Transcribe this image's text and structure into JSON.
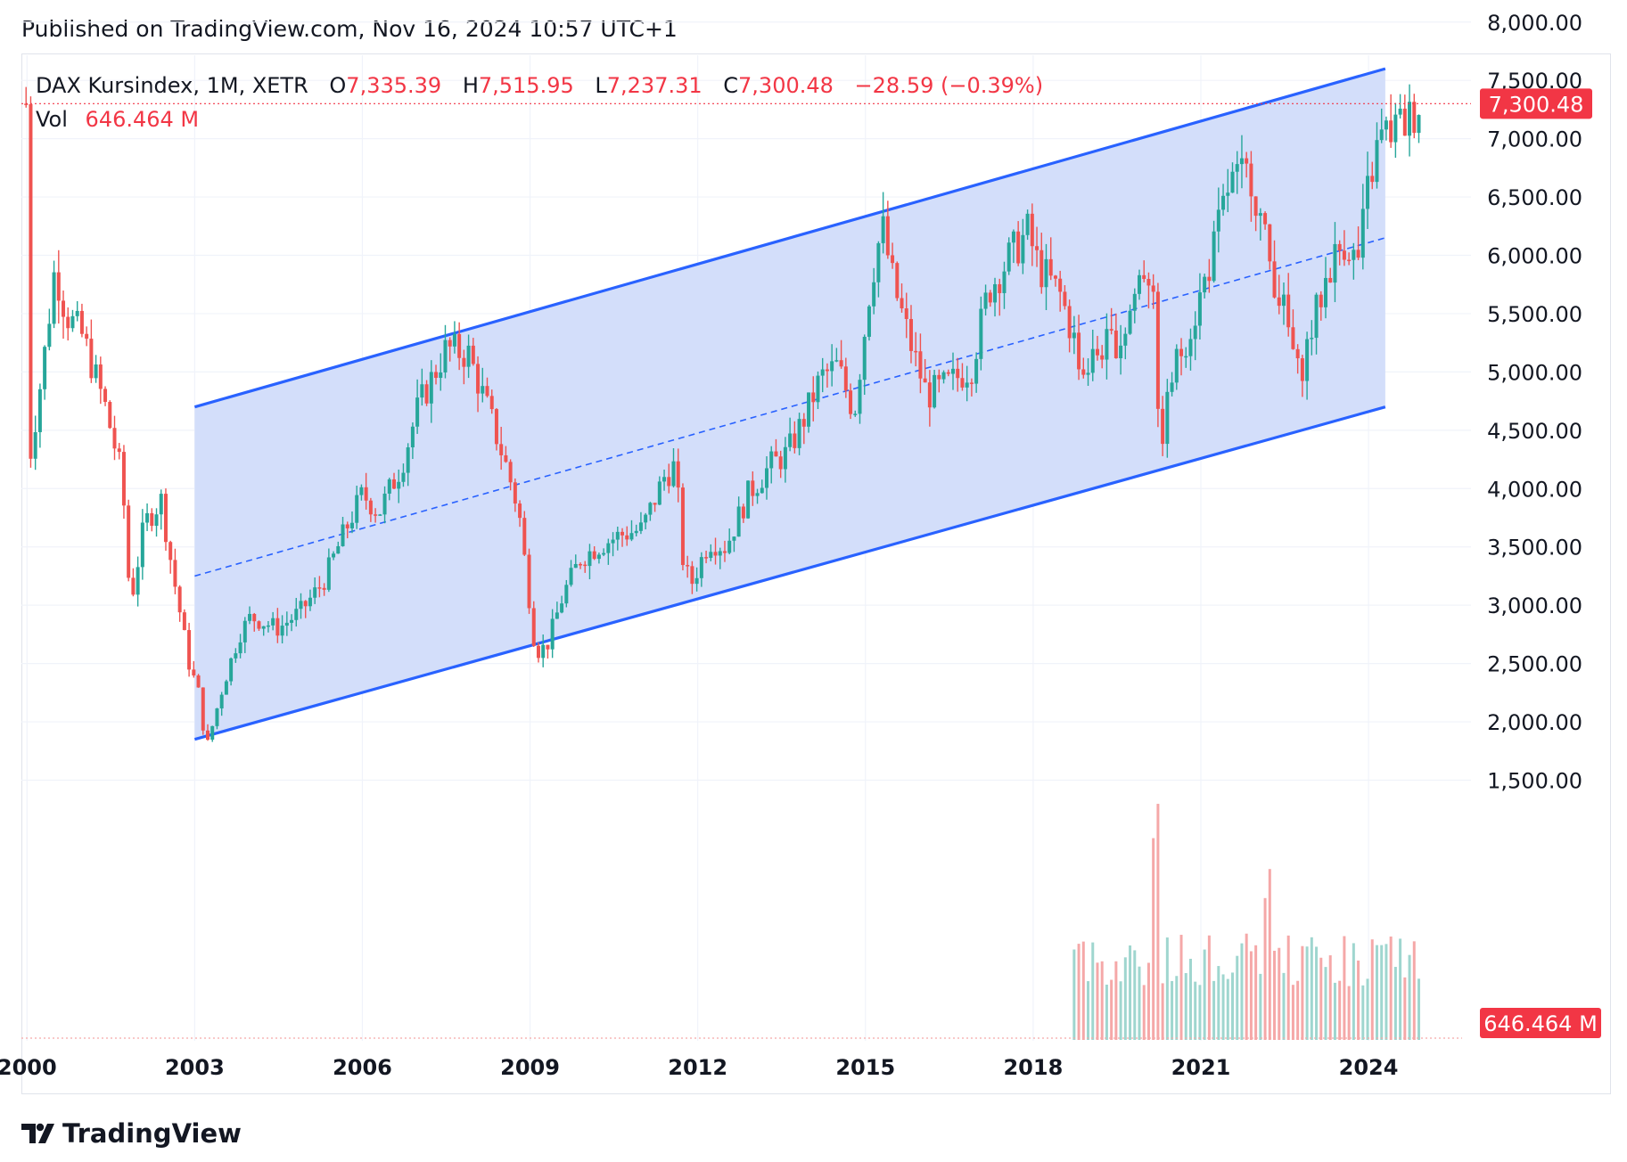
{
  "publish_text": "Published on TradingView.com, Nov 16, 2024 10:57 UTC+1",
  "legend": {
    "symbol": "DAX Kursindex, 1M, XETR",
    "open_label": "O",
    "open": "7,335.39",
    "high_label": "H",
    "high": "7,515.95",
    "low_label": "L",
    "low": "7,237.31",
    "close_label": "C",
    "close": "7,300.48",
    "change": "−28.59 (−0.39%)",
    "vol_label": "Vol",
    "vol": "646.464 M"
  },
  "brand": "TradingView",
  "colors": {
    "up": "#26a69a",
    "down": "#ef5350",
    "channel": "#2962ff",
    "channel_fill": "#d1dcfa",
    "price_badge": "#f23645",
    "vol_up": "#9fd6cf",
    "vol_down": "#f5a8a8"
  },
  "chart_data": {
    "type": "candlestick",
    "title": "DAX Kursindex, 1M, XETR",
    "yrange": [
      1000,
      8300
    ],
    "yticks": [
      1500,
      2000,
      2500,
      3000,
      3500,
      4000,
      4500,
      5000,
      5500,
      6000,
      6500,
      7000,
      7500,
      8000
    ],
    "ytick_labels": [
      "1,500.00",
      "2,000.00",
      "2,500.00",
      "3,000.00",
      "3,500.00",
      "4,000.00",
      "4,500.00",
      "5,000.00",
      "5,500.00",
      "6,000.00",
      "6,500.00",
      "7,000.00",
      "7,500.00",
      "8,000.00"
    ],
    "xrange": [
      1999.9,
      2024.9
    ],
    "xticks": [
      2000,
      2003,
      2006,
      2009,
      2012,
      2015,
      2018,
      2021,
      2024
    ],
    "xtick_labels": [
      "2000",
      "2003",
      "2006",
      "2009",
      "2012",
      "2015",
      "2018",
      "2021",
      "2024"
    ],
    "last_close": 7300.48,
    "last_close_label": "7,300.48",
    "volume_label": "646.464 M",
    "volume_max_m": 1700,
    "close_path": [
      [
        2000.0,
        4100
      ],
      [
        2000.3,
        5100
      ],
      [
        2000.5,
        5900
      ],
      [
        2000.7,
        5500
      ],
      [
        2001.0,
        5300
      ],
      [
        2001.4,
        4700
      ],
      [
        2001.7,
        4100
      ],
      [
        2001.85,
        3000
      ],
      [
        2002.1,
        3700
      ],
      [
        2002.4,
        3900
      ],
      [
        2002.6,
        3300
      ],
      [
        2002.9,
        2500
      ],
      [
        2003.1,
        2200
      ],
      [
        2003.2,
        1750
      ],
      [
        2003.5,
        2300
      ],
      [
        2003.8,
        2750
      ],
      [
        2004.0,
        2900
      ],
      [
        2004.5,
        2800
      ],
      [
        2004.9,
        2950
      ],
      [
        2005.3,
        3200
      ],
      [
        2005.7,
        3650
      ],
      [
        2006.0,
        3950
      ],
      [
        2006.3,
        3800
      ],
      [
        2006.7,
        4200
      ],
      [
        2007.0,
        4700
      ],
      [
        2007.5,
        5200
      ],
      [
        2007.9,
        5150
      ],
      [
        2008.3,
        4600
      ],
      [
        2008.6,
        4150
      ],
      [
        2008.8,
        3800
      ],
      [
        2009.1,
        2600
      ],
      [
        2009.3,
        2650
      ],
      [
        2009.6,
        3100
      ],
      [
        2009.9,
        3400
      ],
      [
        2010.2,
        3500
      ],
      [
        2010.6,
        3600
      ],
      [
        2011.0,
        3650
      ],
      [
        2011.4,
        4100
      ],
      [
        2011.6,
        4200
      ],
      [
        2011.75,
        3300
      ],
      [
        2011.9,
        3200
      ],
      [
        2012.2,
        3550
      ],
      [
        2012.5,
        3500
      ],
      [
        2012.9,
        3950
      ],
      [
        2013.3,
        4200
      ],
      [
        2013.6,
        4300
      ],
      [
        2013.9,
        4600
      ],
      [
        2014.2,
        4950
      ],
      [
        2014.5,
        5050
      ],
      [
        2014.8,
        4650
      ],
      [
        2015.1,
        5800
      ],
      [
        2015.3,
        6250
      ],
      [
        2015.5,
        5750
      ],
      [
        2015.8,
        5250
      ],
      [
        2016.1,
        4800
      ],
      [
        2016.5,
        4900
      ],
      [
        2016.9,
        5050
      ],
      [
        2017.2,
        5700
      ],
      [
        2017.6,
        6000
      ],
      [
        2017.9,
        6200
      ],
      [
        2018.1,
        5900
      ],
      [
        2018.5,
        5650
      ],
      [
        2018.9,
        5000
      ],
      [
        2019.2,
        5200
      ],
      [
        2019.6,
        5300
      ],
      [
        2019.95,
        5900
      ],
      [
        2020.15,
        5800
      ],
      [
        2020.25,
        4300
      ],
      [
        2020.5,
        5000
      ],
      [
        2020.9,
        5500
      ],
      [
        2021.2,
        6000
      ],
      [
        2021.5,
        6600
      ],
      [
        2021.9,
        6700
      ],
      [
        2022.2,
        6000
      ],
      [
        2022.5,
        5500
      ],
      [
        2022.75,
        4950
      ],
      [
        2023.0,
        5400
      ],
      [
        2023.3,
        5900
      ],
      [
        2023.6,
        6150
      ],
      [
        2023.8,
        5900
      ],
      [
        2024.0,
        6600
      ],
      [
        2024.2,
        7000
      ],
      [
        2024.5,
        7100
      ],
      [
        2024.7,
        7150
      ],
      [
        2024.9,
        7300
      ]
    ],
    "channel": {
      "upper": [
        [
          2003.0,
          4700
        ],
        [
          2024.3,
          7600
        ]
      ],
      "lower": [
        [
          2003.0,
          1850
        ],
        [
          2024.3,
          4700
        ]
      ],
      "mid": [
        [
          2003.0,
          3250
        ],
        [
          2024.3,
          6150
        ]
      ]
    }
  }
}
